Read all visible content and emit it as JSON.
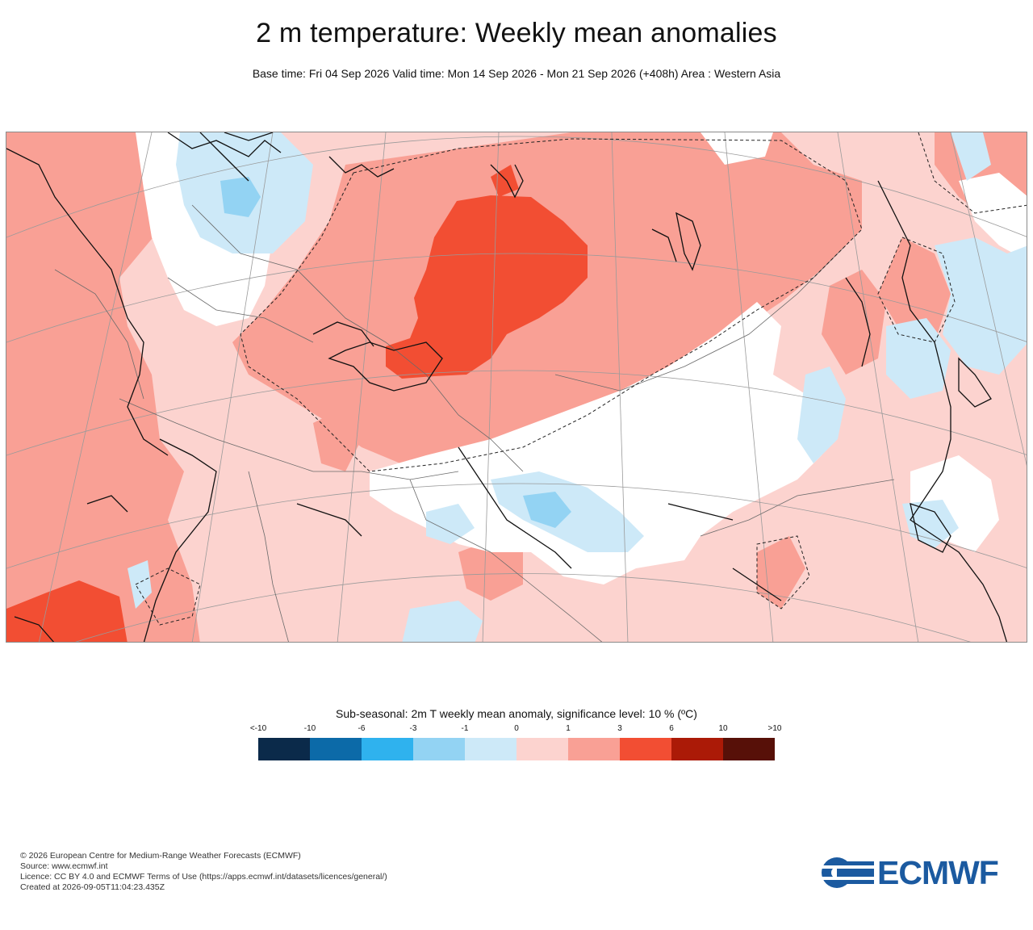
{
  "title": "2 m temperature: Weekly mean anomalies",
  "subtitle": "Base time: Fri 04 Sep 2026 Valid time: Mon 14 Sep 2026 - Mon 21 Sep 2026 (+408h) Area : Western Asia",
  "legend": {
    "title": "Sub-seasonal: 2m T weekly mean anomaly, significance level: 10 % (ºC)",
    "ticks": [
      "<-10",
      "-10",
      "-6",
      "-3",
      "-1",
      "0",
      "1",
      "3",
      "6",
      "10",
      ">10"
    ],
    "colors": [
      "#0b2a4a",
      "#0c6aa8",
      "#2fb2ee",
      "#93d3f3",
      "#cde9f8",
      "#fcd3cf",
      "#f9a095",
      "#f24e33",
      "#ab1a07",
      "#571008"
    ]
  },
  "map_colors": {
    "strong_warm": "#f24e33",
    "warm": "#f9a095",
    "mild_warm": "#fcd3cf",
    "mild_cool": "#cde9f8",
    "cool": "#93d3f3",
    "coast": "#111111",
    "border": "#6a6a6a",
    "graticule": "#9a9a9a"
  },
  "footer": {
    "line1": "© 2026 European Centre for Medium-Range Weather Forecasts (ECMWF)",
    "line2": "Source: www.ecmwf.int",
    "line3": "Licence: CC BY 4.0 and ECMWF Terms of Use (https://apps.ecmwf.int/datasets/licences/general/)",
    "line4": "Created at 2026-09-05T11:04:23.435Z"
  },
  "logo": {
    "text": "ECMWF",
    "color": "#1b5aa0"
  }
}
